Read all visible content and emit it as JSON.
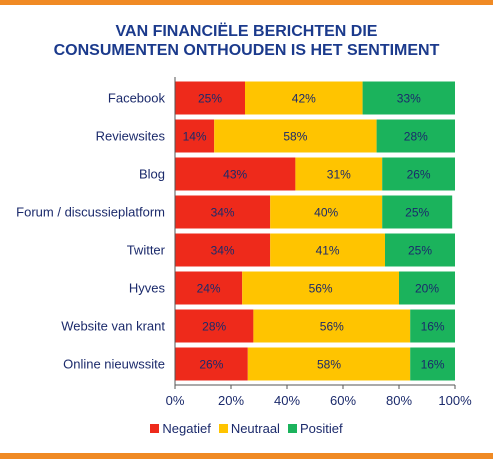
{
  "chart_data": {
    "type": "bar",
    "orientation": "horizontal",
    "stacked": true,
    "title_lines": [
      "VAN FINANCIËLE BERICHTEN DIE",
      "CONSUMENTEN ONTHOUDEN IS HET SENTIMENT"
    ],
    "categories": [
      "Facebook",
      "Reviewsites",
      "Blog",
      "Forum / discussieplatform",
      "Twitter",
      "Hyves",
      "Website van krant",
      "Online nieuwssite"
    ],
    "series": [
      {
        "name": "Negatief",
        "color": "#ee2a1b",
        "values": [
          25,
          14,
          43,
          34,
          34,
          24,
          28,
          26
        ]
      },
      {
        "name": "Neutraal",
        "color": "#ffc400",
        "values": [
          42,
          58,
          31,
          40,
          41,
          56,
          56,
          58
        ]
      },
      {
        "name": "Positief",
        "color": "#1bb35c",
        "values": [
          33,
          28,
          26,
          25,
          25,
          20,
          16,
          16
        ]
      }
    ],
    "xlim": [
      0,
      100
    ],
    "xticks": [
      "0%",
      "20%",
      "40%",
      "60%",
      "80%",
      "100%"
    ],
    "value_suffix": "%",
    "legend_position": "bottom"
  }
}
